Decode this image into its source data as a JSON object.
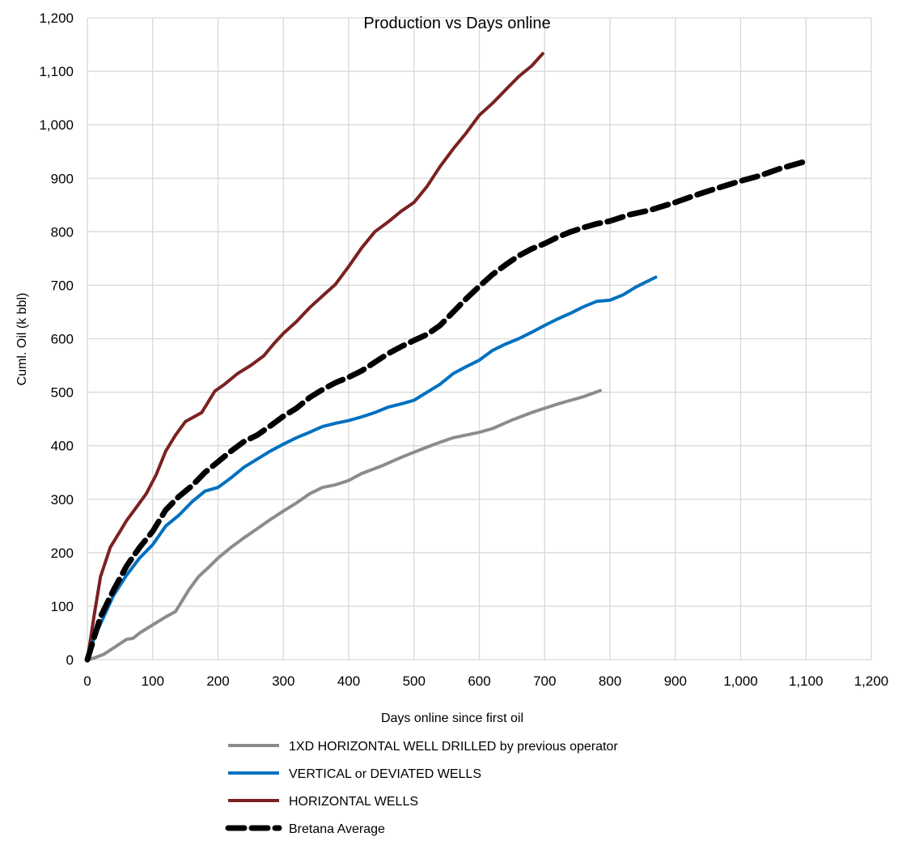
{
  "chart_data": {
    "type": "line",
    "title": "Production vs Days online",
    "xlabel": "Days online since first oil",
    "ylabel": "Cuml. Oil (k bbl)",
    "xlim": [
      0,
      1200
    ],
    "ylim": [
      0,
      1200
    ],
    "x_ticks": [
      "0",
      "100",
      "200",
      "300",
      "400",
      "500",
      "600",
      "700",
      "800",
      "900",
      "1,000",
      "1,100",
      "1,200"
    ],
    "y_ticks": [
      "0",
      "100",
      "200",
      "300",
      "400",
      "500",
      "600",
      "700",
      "800",
      "900",
      "1,000",
      "1,100",
      "1,200"
    ],
    "grid": true,
    "legend_position": "bottom",
    "series": [
      {
        "name": "1XD HORIZONTAL WELL DRILLED by previous operator",
        "color": "#8c8c8c",
        "style": "solid",
        "points": [
          [
            0,
            0
          ],
          [
            10,
            3
          ],
          [
            25,
            10
          ],
          [
            40,
            22
          ],
          [
            60,
            38
          ],
          [
            70,
            40
          ],
          [
            80,
            50
          ],
          [
            100,
            65
          ],
          [
            120,
            80
          ],
          [
            135,
            90
          ],
          [
            145,
            110
          ],
          [
            155,
            130
          ],
          [
            170,
            155
          ],
          [
            185,
            172
          ],
          [
            200,
            190
          ],
          [
            220,
            210
          ],
          [
            240,
            228
          ],
          [
            260,
            245
          ],
          [
            280,
            262
          ],
          [
            300,
            278
          ],
          [
            320,
            293
          ],
          [
            340,
            310
          ],
          [
            360,
            322
          ],
          [
            380,
            327
          ],
          [
            400,
            335
          ],
          [
            420,
            348
          ],
          [
            450,
            362
          ],
          [
            480,
            378
          ],
          [
            500,
            388
          ],
          [
            530,
            402
          ],
          [
            560,
            415
          ],
          [
            600,
            425
          ],
          [
            620,
            432
          ],
          [
            650,
            448
          ],
          [
            680,
            462
          ],
          [
            700,
            470
          ],
          [
            720,
            478
          ],
          [
            740,
            485
          ],
          [
            760,
            492
          ],
          [
            785,
            503
          ]
        ]
      },
      {
        "name": "VERTICAL or DEVIATED WELLS",
        "color": "#0070c0",
        "style": "solid",
        "points": [
          [
            0,
            0
          ],
          [
            10,
            40
          ],
          [
            25,
            80
          ],
          [
            40,
            120
          ],
          [
            60,
            158
          ],
          [
            80,
            190
          ],
          [
            100,
            215
          ],
          [
            120,
            250
          ],
          [
            140,
            270
          ],
          [
            160,
            295
          ],
          [
            180,
            315
          ],
          [
            200,
            322
          ],
          [
            220,
            340
          ],
          [
            240,
            360
          ],
          [
            260,
            375
          ],
          [
            280,
            390
          ],
          [
            300,
            403
          ],
          [
            320,
            415
          ],
          [
            340,
            425
          ],
          [
            360,
            436
          ],
          [
            380,
            442
          ],
          [
            400,
            447
          ],
          [
            420,
            454
          ],
          [
            440,
            462
          ],
          [
            460,
            472
          ],
          [
            480,
            478
          ],
          [
            500,
            485
          ],
          [
            520,
            500
          ],
          [
            540,
            515
          ],
          [
            560,
            535
          ],
          [
            580,
            548
          ],
          [
            600,
            560
          ],
          [
            620,
            578
          ],
          [
            640,
            590
          ],
          [
            660,
            600
          ],
          [
            680,
            612
          ],
          [
            700,
            625
          ],
          [
            720,
            637
          ],
          [
            740,
            648
          ],
          [
            760,
            660
          ],
          [
            780,
            670
          ],
          [
            800,
            672
          ],
          [
            820,
            682
          ],
          [
            840,
            697
          ],
          [
            870,
            715
          ]
        ]
      },
      {
        "name": "HORIZONTAL WELLS",
        "color": "#7b2121",
        "style": "solid",
        "points": [
          [
            0,
            0
          ],
          [
            10,
            80
          ],
          [
            20,
            155
          ],
          [
            35,
            210
          ],
          [
            50,
            240
          ],
          [
            60,
            260
          ],
          [
            75,
            285
          ],
          [
            90,
            310
          ],
          [
            105,
            345
          ],
          [
            120,
            390
          ],
          [
            135,
            420
          ],
          [
            150,
            445
          ],
          [
            175,
            462
          ],
          [
            195,
            502
          ],
          [
            210,
            515
          ],
          [
            230,
            535
          ],
          [
            250,
            550
          ],
          [
            270,
            568
          ],
          [
            285,
            590
          ],
          [
            300,
            610
          ],
          [
            320,
            632
          ],
          [
            340,
            658
          ],
          [
            360,
            680
          ],
          [
            380,
            702
          ],
          [
            400,
            735
          ],
          [
            420,
            770
          ],
          [
            440,
            800
          ],
          [
            460,
            818
          ],
          [
            480,
            838
          ],
          [
            500,
            855
          ],
          [
            520,
            885
          ],
          [
            540,
            922
          ],
          [
            560,
            955
          ],
          [
            580,
            985
          ],
          [
            600,
            1018
          ],
          [
            620,
            1040
          ],
          [
            640,
            1065
          ],
          [
            660,
            1090
          ],
          [
            680,
            1110
          ],
          [
            697,
            1133
          ]
        ]
      },
      {
        "name": "Bretana Average",
        "color": "#000000",
        "style": "dashed",
        "points": [
          [
            0,
            0
          ],
          [
            20,
            80
          ],
          [
            40,
            130
          ],
          [
            60,
            175
          ],
          [
            80,
            210
          ],
          [
            100,
            240
          ],
          [
            120,
            280
          ],
          [
            140,
            305
          ],
          [
            160,
            325
          ],
          [
            180,
            350
          ],
          [
            200,
            370
          ],
          [
            220,
            390
          ],
          [
            240,
            408
          ],
          [
            260,
            420
          ],
          [
            280,
            437
          ],
          [
            300,
            455
          ],
          [
            320,
            470
          ],
          [
            340,
            490
          ],
          [
            360,
            505
          ],
          [
            380,
            518
          ],
          [
            400,
            528
          ],
          [
            420,
            540
          ],
          [
            440,
            556
          ],
          [
            460,
            572
          ],
          [
            480,
            585
          ],
          [
            500,
            597
          ],
          [
            520,
            608
          ],
          [
            540,
            625
          ],
          [
            560,
            650
          ],
          [
            580,
            675
          ],
          [
            600,
            698
          ],
          [
            620,
            720
          ],
          [
            640,
            738
          ],
          [
            660,
            755
          ],
          [
            680,
            768
          ],
          [
            700,
            778
          ],
          [
            720,
            790
          ],
          [
            740,
            800
          ],
          [
            760,
            808
          ],
          [
            780,
            815
          ],
          [
            800,
            820
          ],
          [
            830,
            832
          ],
          [
            860,
            840
          ],
          [
            900,
            855
          ],
          [
            930,
            868
          ],
          [
            960,
            880
          ],
          [
            1000,
            895
          ],
          [
            1030,
            905
          ],
          [
            1060,
            918
          ],
          [
            1095,
            930
          ]
        ]
      }
    ]
  }
}
